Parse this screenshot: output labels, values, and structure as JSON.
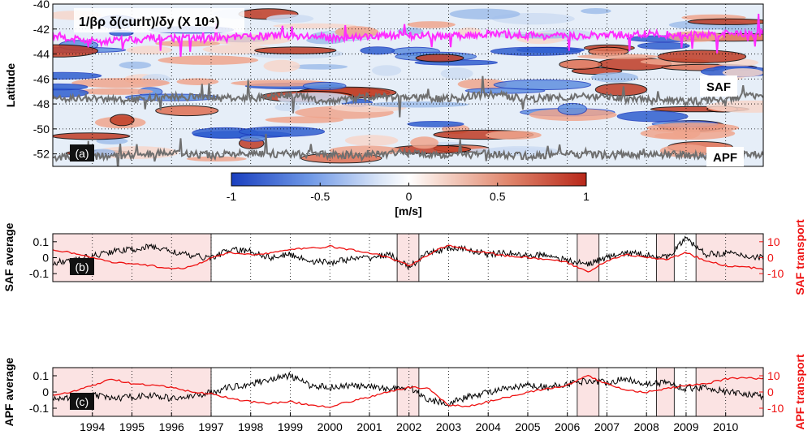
{
  "panel_a": {
    "title": "1/βρ δ(curlτ)/δy (X 10⁴)",
    "ylabel": "Latitude",
    "label": "(a)",
    "yticks": [
      "-40",
      "-42",
      "-44",
      "-46",
      "-48",
      "-50",
      "-52"
    ],
    "front_labels": [
      "SAF",
      "APF"
    ],
    "colorbar": {
      "ticks": [
        "-1",
        "-0.5",
        "0",
        "0.5",
        "1"
      ],
      "unit": "[m/s]",
      "min_color": "#1a3fbf",
      "mid_color": "#ffffff",
      "max_color": "#b8281a"
    },
    "line_colors": {
      "saf_north": "#ff2bff",
      "saf_south": "#6f6f6f",
      "apf": "#6f6f6f"
    }
  },
  "panel_b": {
    "label": "(b)",
    "ylabel_left": "SAF average",
    "ylabel_right": "SAF transport",
    "left_ticks": [
      "0.1",
      "0",
      "-0.1"
    ],
    "right_ticks": [
      "10",
      "0",
      "-10"
    ]
  },
  "panel_c": {
    "label": "(c)",
    "ylabel_left": "APF average",
    "ylabel_right": "APF transport",
    "left_ticks": [
      "0.1",
      "0",
      "-0.1"
    ],
    "right_ticks": [
      "10",
      "0",
      "-10"
    ]
  },
  "xaxis": {
    "year_labels": [
      "1994",
      "1995",
      "1996",
      "1997",
      "1998",
      "1999",
      "2000",
      "2001",
      "2002",
      "2003",
      "2004",
      "2005",
      "2006",
      "2007",
      "2008",
      "2009",
      "2010"
    ]
  },
  "shaded_periods": [
    [
      1993.0,
      1997.0
    ],
    [
      2001.7,
      2002.25
    ],
    [
      2006.25,
      2006.8
    ],
    [
      2008.25,
      2008.7
    ],
    [
      2009.25,
      2010.95
    ]
  ],
  "chart_data": [
    {
      "type": "heatmap",
      "title": "1/βρ δ(curlτ)/δy (X 10⁴)",
      "ylabel": "Latitude",
      "xlim": [
        1993.0,
        2010.95
      ],
      "ylim": [
        -53,
        -40
      ],
      "clim": [
        -1,
        1
      ],
      "colorbar_label": "[m/s]",
      "series": [
        {
          "name": "SAF",
          "x": [
            1993.0,
            1994.0,
            1995.0,
            1996.0,
            1997.0,
            1998.0,
            1999.0,
            2000.0,
            2001.0,
            2002.0,
            2003.0,
            2004.0,
            2005.0,
            2006.0,
            2007.0,
            2008.0,
            2009.0,
            2010.0,
            2010.95
          ],
          "y": [
            -42.5,
            -43.0,
            -42.8,
            -42.7,
            -42.8,
            -42.6,
            -42.5,
            -42.7,
            -42.6,
            -42.5,
            -42.6,
            -42.4,
            -42.5,
            -42.6,
            -42.5,
            -42.4,
            -42.5,
            -42.4,
            -42.3
          ]
        },
        {
          "name": "SAF",
          "x": [
            1993.0,
            1994.0,
            1995.0,
            1996.0,
            1997.0,
            1998.0,
            1999.0,
            2000.0,
            2001.0,
            2002.0,
            2003.0,
            2004.0,
            2005.0,
            2006.0,
            2007.0,
            2008.0,
            2009.0,
            2010.0,
            2010.95
          ],
          "y": [
            -47.5,
            -47.6,
            -47.7,
            -47.4,
            -47.5,
            -47.6,
            -47.3,
            -47.8,
            -47.4,
            -47.5,
            -47.6,
            -47.2,
            -47.6,
            -47.4,
            -47.5,
            -47.7,
            -47.8,
            -47.6,
            -47.2
          ]
        },
        {
          "name": "APF",
          "x": [
            1993.0,
            1994.0,
            1995.0,
            1996.0,
            1997.0,
            1998.0,
            1999.0,
            2000.0,
            2001.0,
            2002.0,
            2003.0,
            2004.0,
            2005.0,
            2006.0,
            2007.0,
            2008.0,
            2009.0,
            2010.0,
            2010.95
          ],
          "y": [
            -52.3,
            -52.2,
            -52.1,
            -51.9,
            -52.1,
            -52.0,
            -52.0,
            -52.1,
            -52.0,
            -51.9,
            -52.1,
            -52.0,
            -52.2,
            -52.0,
            -52.1,
            -52.0,
            -52.1,
            -52.2,
            -52.0
          ]
        }
      ]
    },
    {
      "type": "line",
      "xlabel": "",
      "ylabel": "SAF average",
      "ylabel_right": "SAF transport",
      "xlim": [
        1993.0,
        2010.95
      ],
      "ylim": [
        -0.15,
        0.15
      ],
      "ylim_right": [
        -15,
        15
      ],
      "series": [
        {
          "name": "SAF average",
          "axis": "left",
          "x": [
            1993.0,
            1993.5,
            1994.0,
            1994.5,
            1995.0,
            1995.5,
            1996.0,
            1996.5,
            1997.0,
            1997.5,
            1998.0,
            1998.5,
            1999.0,
            1999.5,
            2000.0,
            2000.5,
            2001.0,
            2001.5,
            2002.0,
            2002.5,
            2003.0,
            2003.5,
            2004.0,
            2004.5,
            2005.0,
            2005.5,
            2006.0,
            2006.5,
            2007.0,
            2007.5,
            2008.0,
            2008.5,
            2009.0,
            2009.5,
            2010.0,
            2010.5,
            2010.95
          ],
          "y": [
            -0.03,
            -0.02,
            0.01,
            0.04,
            0.05,
            0.07,
            0.04,
            0.01,
            0.0,
            0.05,
            0.04,
            0.0,
            0.02,
            -0.02,
            -0.03,
            -0.01,
            0.0,
            0.02,
            -0.06,
            0.03,
            0.06,
            0.05,
            0.02,
            0.03,
            0.01,
            0.02,
            -0.02,
            -0.04,
            0.0,
            0.03,
            0.02,
            0.0,
            0.12,
            0.02,
            0.03,
            0.01,
            0.0
          ]
        },
        {
          "name": "SAF transport",
          "axis": "right",
          "x": [
            1993.0,
            1993.5,
            1994.0,
            1994.5,
            1995.0,
            1995.5,
            1996.0,
            1996.5,
            1997.0,
            1997.5,
            1998.0,
            1998.5,
            1999.0,
            1999.5,
            2000.0,
            2000.5,
            2001.0,
            2001.5,
            2002.0,
            2002.5,
            2003.0,
            2003.5,
            2004.0,
            2004.5,
            2005.0,
            2005.5,
            2006.0,
            2006.5,
            2007.0,
            2007.5,
            2008.0,
            2008.5,
            2009.0,
            2009.5,
            2010.0,
            2010.5,
            2010.95
          ],
          "y": [
            5,
            3,
            0,
            -3,
            -4,
            -5,
            -7,
            -6,
            0,
            3,
            2,
            3,
            5,
            6,
            7,
            5,
            3,
            0,
            -5,
            2,
            8,
            5,
            3,
            1,
            0,
            -1,
            -3,
            -9,
            -2,
            2,
            0,
            -1,
            3,
            -2,
            -5,
            -6,
            -7
          ]
        }
      ]
    },
    {
      "type": "line",
      "xlabel": "",
      "ylabel": "APF average",
      "ylabel_right": "APF transport",
      "xlim": [
        1993.0,
        2010.95
      ],
      "ylim": [
        -0.15,
        0.15
      ],
      "ylim_right": [
        -15,
        15
      ],
      "series": [
        {
          "name": "APF average",
          "axis": "left",
          "x": [
            1993.0,
            1993.5,
            1994.0,
            1994.5,
            1995.0,
            1995.5,
            1996.0,
            1996.5,
            1997.0,
            1997.5,
            1998.0,
            1998.5,
            1999.0,
            1999.5,
            2000.0,
            2000.5,
            2001.0,
            2001.5,
            2002.0,
            2002.5,
            2003.0,
            2003.5,
            2004.0,
            2004.5,
            2005.0,
            2005.5,
            2006.0,
            2006.5,
            2007.0,
            2007.5,
            2008.0,
            2008.5,
            2009.0,
            2009.5,
            2010.0,
            2010.5,
            2010.95
          ],
          "y": [
            -0.03,
            -0.04,
            -0.02,
            -0.04,
            -0.03,
            -0.02,
            -0.04,
            -0.03,
            0.0,
            0.03,
            0.05,
            0.08,
            0.1,
            0.04,
            0.03,
            0.04,
            0.03,
            0.02,
            0.03,
            -0.05,
            -0.07,
            -0.03,
            0.0,
            0.02,
            0.04,
            0.03,
            0.05,
            0.07,
            0.06,
            0.08,
            0.05,
            0.06,
            0.02,
            0.03,
            0.0,
            -0.01,
            -0.03
          ]
        },
        {
          "name": "APF transport",
          "axis": "right",
          "x": [
            1993.0,
            1993.5,
            1994.0,
            1994.5,
            1995.0,
            1995.5,
            1996.0,
            1996.5,
            1997.0,
            1997.5,
            1998.0,
            1998.5,
            1999.0,
            1999.5,
            2000.0,
            2000.5,
            2001.0,
            2001.5,
            2002.0,
            2002.5,
            2003.0,
            2003.5,
            2004.0,
            2004.5,
            2005.0,
            2005.5,
            2006.0,
            2006.5,
            2007.0,
            2007.5,
            2008.0,
            2008.5,
            2009.0,
            2009.5,
            2010.0,
            2010.5,
            2010.95
          ],
          "y": [
            -2,
            0,
            4,
            8,
            5,
            4,
            3,
            0,
            -1,
            -4,
            -6,
            -7,
            -6,
            -8,
            -9,
            -6,
            -3,
            0,
            3,
            2,
            -8,
            -9,
            -6,
            -3,
            0,
            2,
            4,
            10,
            5,
            1,
            0,
            2,
            4,
            5,
            8,
            9,
            8
          ]
        }
      ]
    }
  ]
}
